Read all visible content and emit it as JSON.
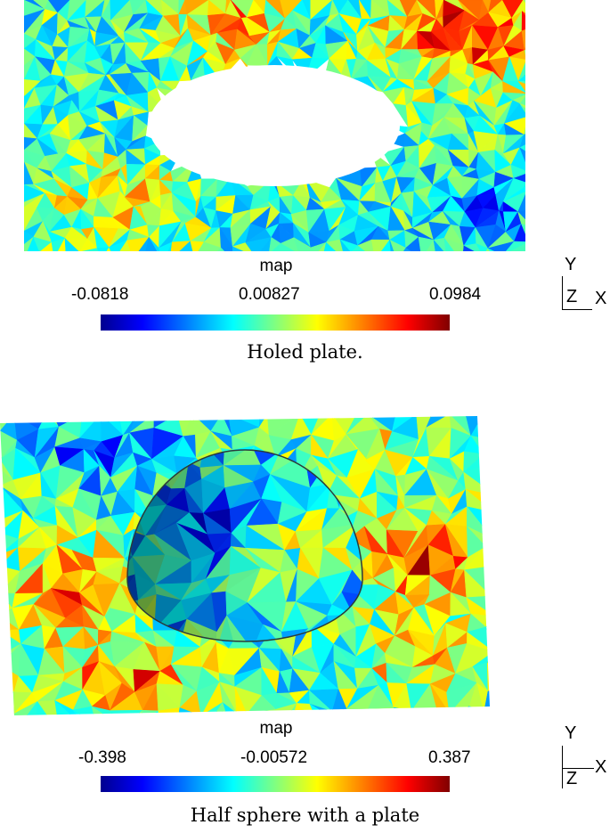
{
  "figures": [
    {
      "colorbar_title": "map",
      "ticks": [
        "-0.0818",
        "0.00827",
        "0.0984"
      ],
      "caption": "Holed plate.",
      "axes": {
        "up": "Y",
        "depth": "Z",
        "right": "X"
      }
    },
    {
      "colorbar_title": "map",
      "ticks": [
        "-0.398",
        "-0.00572",
        "0.387"
      ],
      "caption": "Half sphere with a plate",
      "axes": {
        "up": "Y",
        "depth": "Z",
        "right": "X"
      }
    }
  ],
  "colormap": [
    "#00008f",
    "#0000ff",
    "#0080ff",
    "#00ffff",
    "#80ff80",
    "#ffff00",
    "#ff8000",
    "#ff0000",
    "#800000"
  ]
}
